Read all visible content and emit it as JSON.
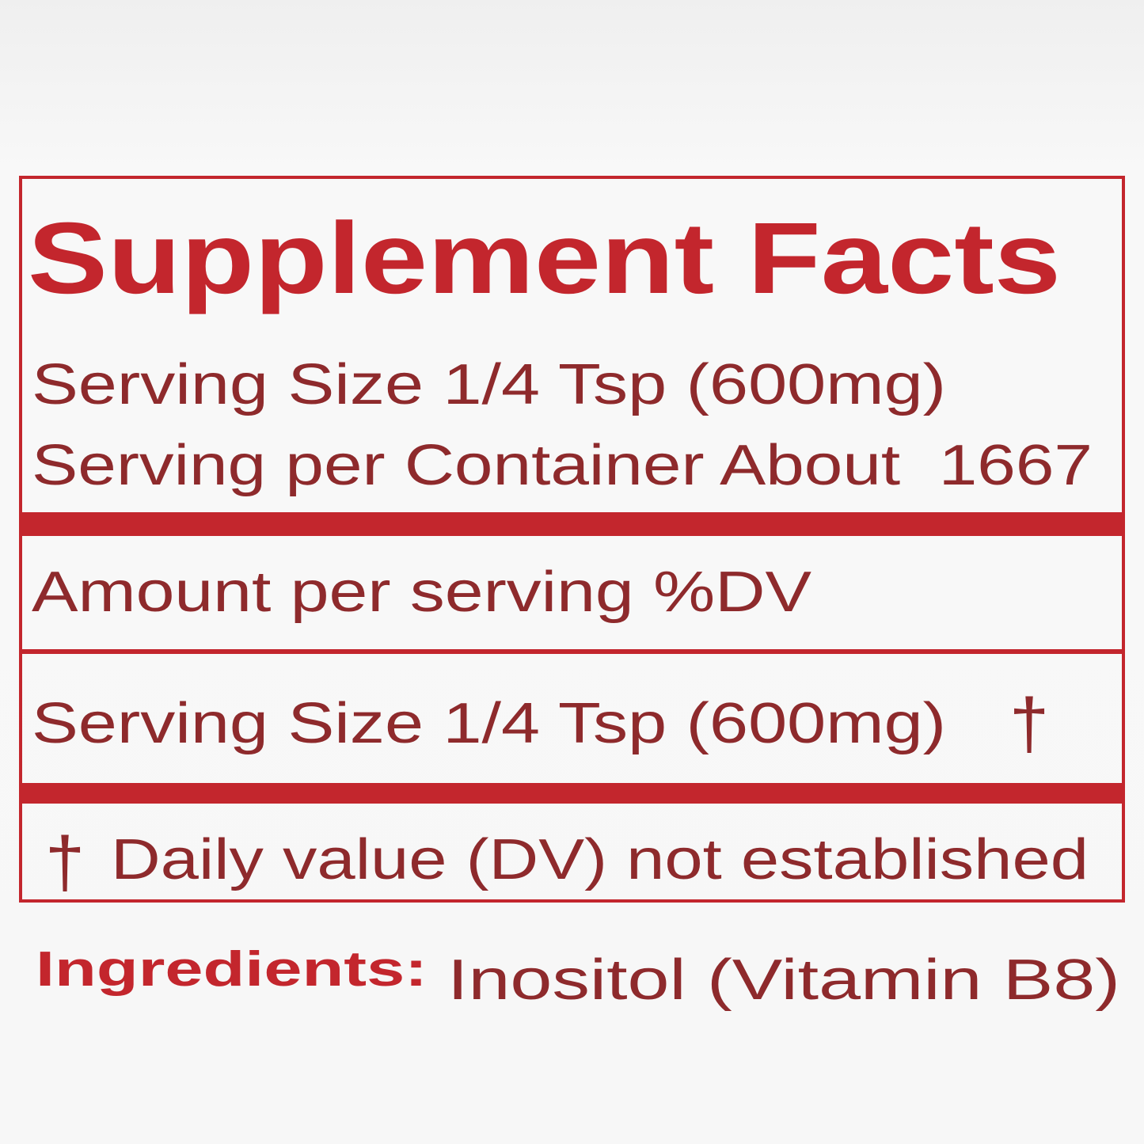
{
  "label": {
    "title": "Supplement Facts",
    "serving_size": "Serving Size 1/4 Tsp (600mg)",
    "servings_per_container": "Serving per Container About  1667",
    "amount_header": "Amount per serving %DV",
    "row": {
      "name": "Serving Size 1/4 Tsp (600mg)",
      "dv": "†"
    },
    "footnote": {
      "symbol": "†",
      "text": "Daily value (DV) not established"
    }
  },
  "ingredients": {
    "heading": "Ingredients:",
    "text": "Inositol (Vitamin B8)"
  }
}
